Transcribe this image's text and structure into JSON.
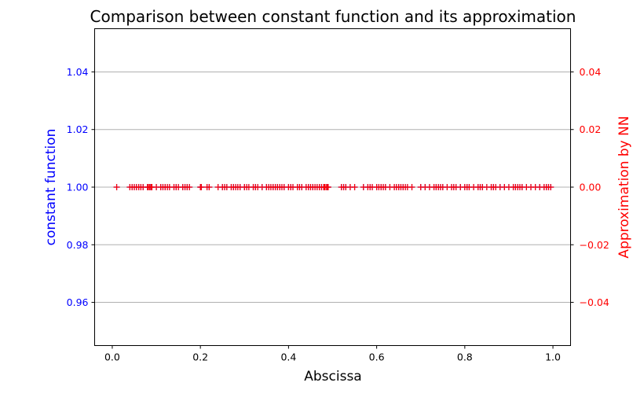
{
  "chart_data": {
    "type": "scatter",
    "title": "Comparison between constant function and its approximation",
    "xlabel": "Abscissa",
    "ylabel_left": "constant function",
    "ylabel_right": "Approximation by NN",
    "xlim": [
      -0.04,
      1.04
    ],
    "ylim_left": [
      0.945,
      1.055
    ],
    "ylim_right": [
      -0.055,
      0.055
    ],
    "x_ticks": [
      0.0,
      0.2,
      0.4,
      0.6,
      0.8,
      1.0
    ],
    "x_tick_labels": [
      "0.0",
      "0.2",
      "0.4",
      "0.6",
      "0.8",
      "1.0"
    ],
    "y_left_ticks": [
      0.96,
      0.98,
      1.0,
      1.02,
      1.04
    ],
    "y_left_tick_labels": [
      "0.96",
      "0.98",
      "1.00",
      "1.02",
      "1.04"
    ],
    "y_right_ticks": [
      -0.04,
      -0.02,
      0.0,
      0.02,
      0.04
    ],
    "y_right_tick_labels": [
      "−0.04",
      "−0.02",
      "0.00",
      "0.02",
      "0.04"
    ],
    "grid": "horizontal",
    "colors": {
      "left_axis": "#0000ff",
      "right_axis": "#ff0000",
      "grid": "#b0b0b0"
    },
    "series": [
      {
        "axis": "left",
        "color": "#0000ff",
        "marker": "plus",
        "x": [
          0.01,
          0.04,
          0.045,
          0.05,
          0.055,
          0.06,
          0.065,
          0.07,
          0.08,
          0.082,
          0.085,
          0.088,
          0.09,
          0.1,
          0.11,
          0.115,
          0.12,
          0.125,
          0.13,
          0.14,
          0.145,
          0.15,
          0.16,
          0.165,
          0.17,
          0.175,
          0.2,
          0.202,
          0.215,
          0.22,
          0.24,
          0.25,
          0.255,
          0.26,
          0.27,
          0.275,
          0.28,
          0.285,
          0.29,
          0.3,
          0.305,
          0.31,
          0.32,
          0.325,
          0.33,
          0.34,
          0.35,
          0.355,
          0.36,
          0.365,
          0.37,
          0.375,
          0.38,
          0.385,
          0.39,
          0.4,
          0.405,
          0.41,
          0.42,
          0.425,
          0.43,
          0.44,
          0.445,
          0.45,
          0.455,
          0.46,
          0.465,
          0.47,
          0.475,
          0.48,
          0.482,
          0.485,
          0.488,
          0.49,
          0.52,
          0.525,
          0.53,
          0.54,
          0.55,
          0.57,
          0.58,
          0.585,
          0.59,
          0.6,
          0.605,
          0.61,
          0.615,
          0.62,
          0.63,
          0.64,
          0.645,
          0.65,
          0.655,
          0.66,
          0.665,
          0.67,
          0.68,
          0.7,
          0.71,
          0.72,
          0.73,
          0.735,
          0.74,
          0.745,
          0.75,
          0.76,
          0.77,
          0.775,
          0.78,
          0.79,
          0.8,
          0.805,
          0.81,
          0.82,
          0.83,
          0.835,
          0.84,
          0.85,
          0.86,
          0.865,
          0.87,
          0.88,
          0.89,
          0.9,
          0.91,
          0.915,
          0.92,
          0.925,
          0.93,
          0.94,
          0.95,
          0.96,
          0.97,
          0.98,
          0.985,
          0.99,
          0.995
        ],
        "y": 1.0
      },
      {
        "axis": "right",
        "color": "#ff0000",
        "marker": "plus",
        "x": [
          0.01,
          0.04,
          0.045,
          0.05,
          0.055,
          0.06,
          0.065,
          0.07,
          0.08,
          0.082,
          0.085,
          0.088,
          0.09,
          0.1,
          0.11,
          0.115,
          0.12,
          0.125,
          0.13,
          0.14,
          0.145,
          0.15,
          0.16,
          0.165,
          0.17,
          0.175,
          0.2,
          0.202,
          0.215,
          0.22,
          0.24,
          0.25,
          0.255,
          0.26,
          0.27,
          0.275,
          0.28,
          0.285,
          0.29,
          0.3,
          0.305,
          0.31,
          0.32,
          0.325,
          0.33,
          0.34,
          0.35,
          0.355,
          0.36,
          0.365,
          0.37,
          0.375,
          0.38,
          0.385,
          0.39,
          0.4,
          0.405,
          0.41,
          0.42,
          0.425,
          0.43,
          0.44,
          0.445,
          0.45,
          0.455,
          0.46,
          0.465,
          0.47,
          0.475,
          0.48,
          0.482,
          0.485,
          0.488,
          0.49,
          0.52,
          0.525,
          0.53,
          0.54,
          0.55,
          0.57,
          0.58,
          0.585,
          0.59,
          0.6,
          0.605,
          0.61,
          0.615,
          0.62,
          0.63,
          0.64,
          0.645,
          0.65,
          0.655,
          0.66,
          0.665,
          0.67,
          0.68,
          0.7,
          0.71,
          0.72,
          0.73,
          0.735,
          0.74,
          0.745,
          0.75,
          0.76,
          0.77,
          0.775,
          0.78,
          0.79,
          0.8,
          0.805,
          0.81,
          0.82,
          0.83,
          0.835,
          0.84,
          0.85,
          0.86,
          0.865,
          0.87,
          0.88,
          0.89,
          0.9,
          0.91,
          0.915,
          0.92,
          0.925,
          0.93,
          0.94,
          0.95,
          0.96,
          0.97,
          0.98,
          0.985,
          0.99,
          0.995
        ],
        "y": 0.0
      }
    ]
  }
}
